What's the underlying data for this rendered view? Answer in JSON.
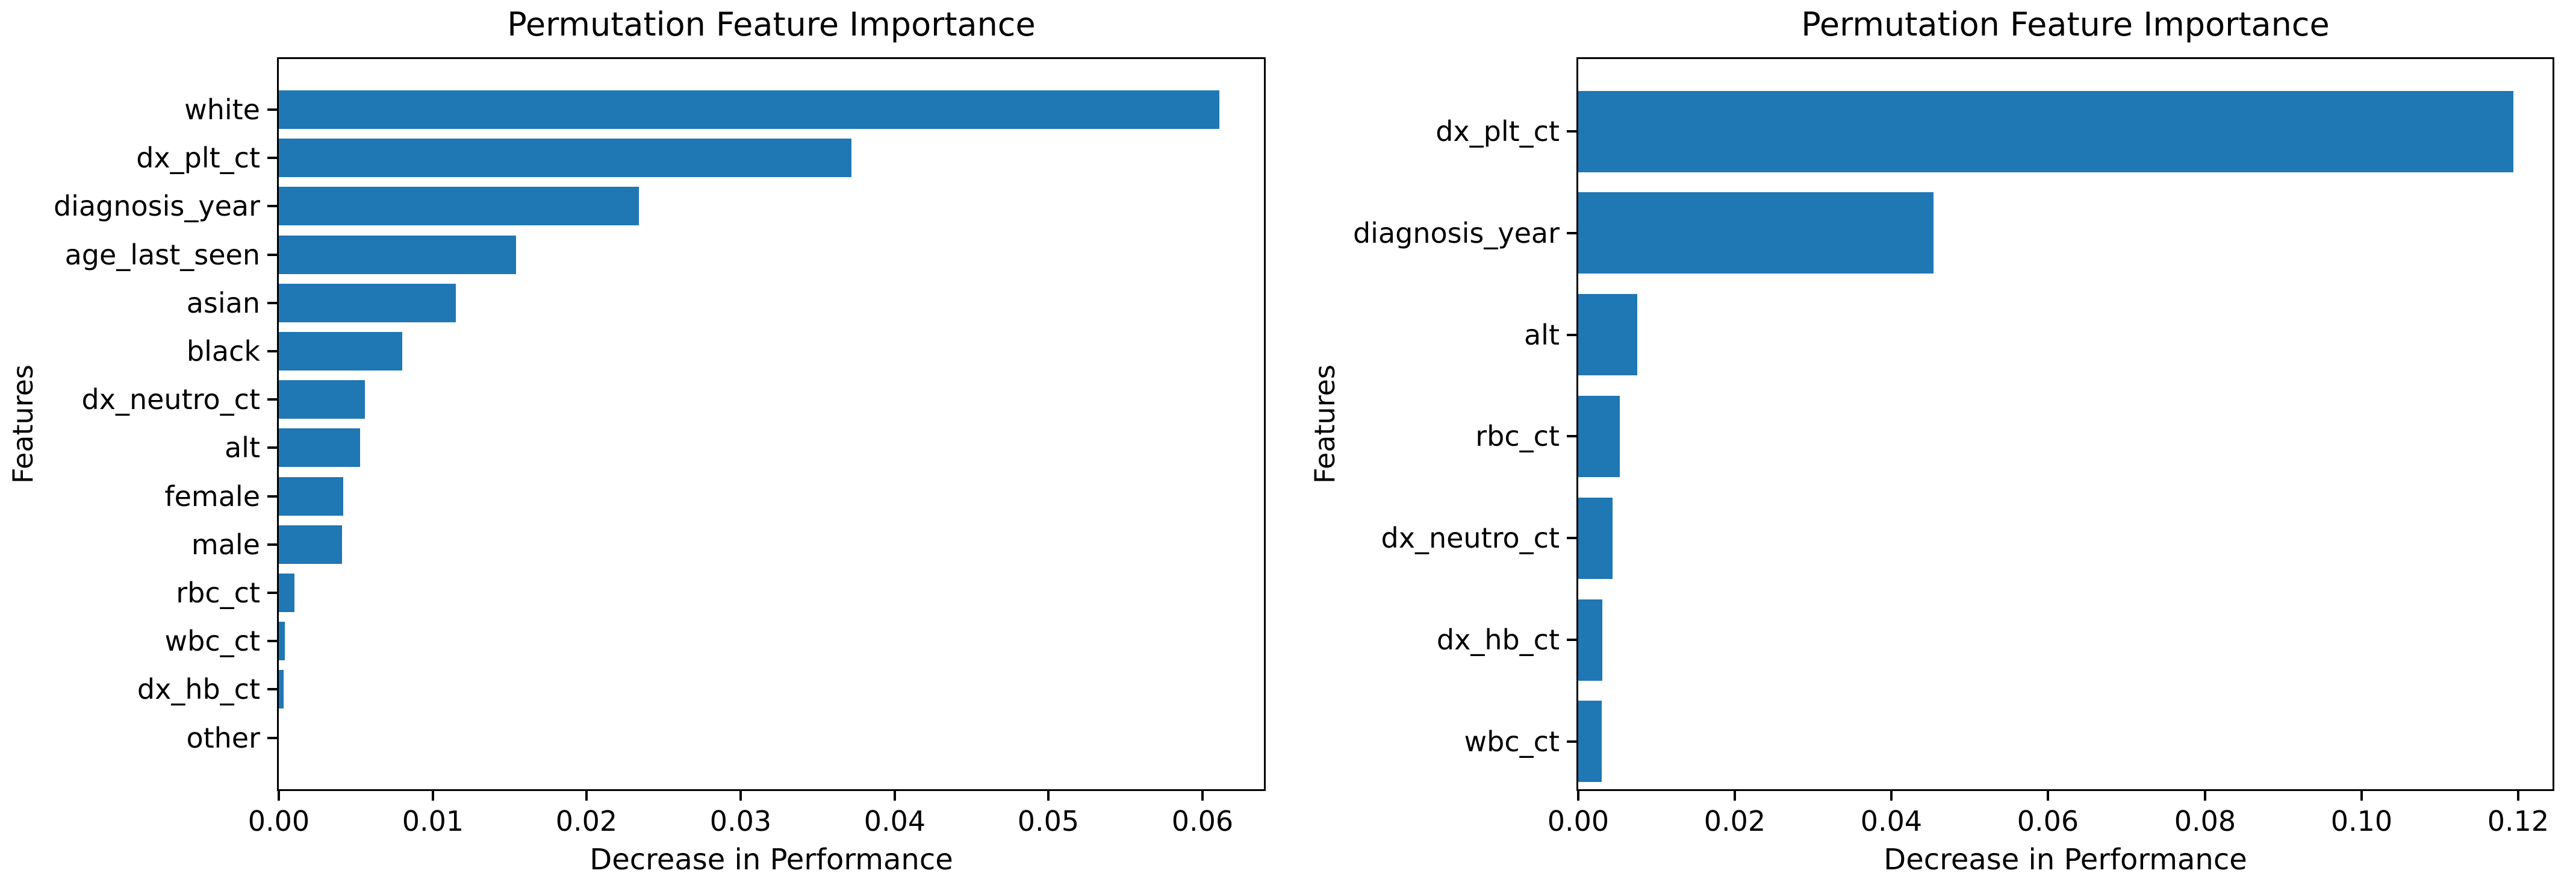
{
  "figure": {
    "background": "#ffffff",
    "bar_color": "#1f77b4",
    "text_color": "#000000",
    "spine_color": "#000000"
  },
  "chart_data": [
    {
      "type": "bar",
      "orientation": "horizontal",
      "title": "Permutation Feature Importance",
      "xlabel": "Decrease in Performance",
      "ylabel": "Features",
      "legend": null,
      "grid": false,
      "xlim": [
        0,
        0.064
      ],
      "xtick_labels": [
        "0.00",
        "0.01",
        "0.02",
        "0.03",
        "0.04",
        "0.05",
        "0.06"
      ],
      "categories": [
        "white",
        "dx_plt_ct",
        "diagnosis_year",
        "age_last_seen",
        "asian",
        "black",
        "dx_neutro_ct",
        "alt",
        "female",
        "male",
        "rbc_ct",
        "wbc_ct",
        "dx_hb_ct",
        "other"
      ],
      "values": [
        0.0611,
        0.0372,
        0.0234,
        0.0154,
        0.0115,
        0.008,
        0.0056,
        0.0053,
        0.0042,
        0.0041,
        0.001,
        0.0004,
        0.0003,
        0.0
      ]
    },
    {
      "type": "bar",
      "orientation": "horizontal",
      "title": "Permutation Feature Importance",
      "xlabel": "Decrease in Performance",
      "ylabel": "Features",
      "legend": null,
      "grid": false,
      "xlim": [
        0,
        0.1244
      ],
      "xtick_labels": [
        "0.00",
        "0.02",
        "0.04",
        "0.06",
        "0.08",
        "0.10",
        "0.12"
      ],
      "categories": [
        "dx_plt_ct",
        "diagnosis_year",
        "alt",
        "rbc_ct",
        "dx_neutro_ct",
        "dx_hb_ct",
        "wbc_ct"
      ],
      "values": [
        0.1194,
        0.0454,
        0.0075,
        0.0053,
        0.0044,
        0.0031,
        0.003
      ]
    }
  ]
}
